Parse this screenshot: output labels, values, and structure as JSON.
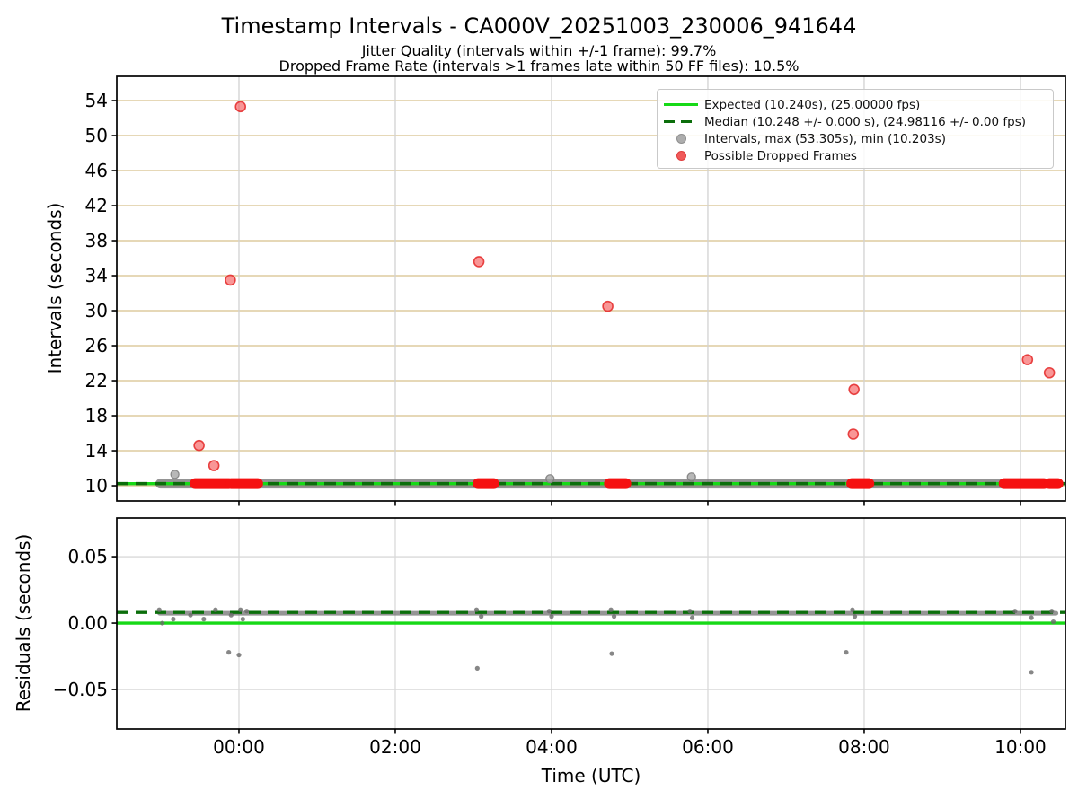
{
  "title": "Timestamp Intervals - CA000V_20251003_230006_941644",
  "subtitle1": "Jitter Quality (intervals within +/-1 frame): 99.7%",
  "subtitle2": "Dropped Frame Rate (intervals >1 frames late within 50 FF files): 10.5%",
  "xlabel": "Time (UTC)",
  "legend": {
    "items": [
      {
        "label": "Expected (10.240s), (25.00000 fps)",
        "marker": "solid-line",
        "color": "#16d916"
      },
      {
        "label": "Median (10.248 +/- 0.000 s), (24.98116 +/- 0.00 fps)",
        "marker": "dashed-line",
        "color": "#0b6e0b"
      },
      {
        "label": "Intervals, max (53.305s), min (10.203s)",
        "marker": "dot",
        "color": "#adadad",
        "edge": "#8f8f8f"
      },
      {
        "label": "Possible Dropped Frames",
        "marker": "dot",
        "color": "#f05a5a",
        "edge": "#df3c3c"
      }
    ]
  },
  "colors": {
    "expected_line": "#16d916",
    "median_line": "#0b6e0b",
    "grid_horizontal_top": "#d8c18c",
    "grid_vertical": "#d2d2d2",
    "grid_bottom": "#d9d9d9",
    "interval_dot_fill": "rgba(160,160,160,0.75)",
    "interval_dot_edge": "rgba(128,128,128,0.9)",
    "dropped_dot_fill": "rgba(245,85,85,0.62)",
    "dropped_dot_edge": "rgba(228,40,40,0.85)",
    "dropped_cluster": "#f51111",
    "baseline_band": "rgba(118,118,118,0.78)",
    "residual_dot": "rgba(105,105,105,0.8)",
    "spine": "#000000"
  },
  "chart_data": [
    {
      "type": "scatter",
      "panel": "intervals",
      "ylabel": "Intervals (seconds)",
      "yticks": [
        10,
        14,
        18,
        22,
        26,
        30,
        34,
        38,
        42,
        46,
        50,
        54
      ],
      "ylim": [
        8.26,
        56.77
      ],
      "xlim_hours": [
        -1.563,
        10.575
      ],
      "xticks": [
        {
          "hours": 0,
          "label": "00:00"
        },
        {
          "hours": 2,
          "label": "02:00"
        },
        {
          "hours": 4,
          "label": "04:00"
        },
        {
          "hours": 6,
          "label": "06:00"
        },
        {
          "hours": 8,
          "label": "08:00"
        },
        {
          "hours": 10,
          "label": "10:00"
        }
      ],
      "expected_interval_s": 10.24,
      "expected_fps": 25.0,
      "median_interval_s": 10.248,
      "median_fps": 24.98116,
      "max_interval_s": 53.305,
      "min_interval_s": 10.203,
      "baseline_band": {
        "value": 10.25,
        "start_h": -1.01,
        "end_h": 10.48
      },
      "interval_points": [
        [
          -0.82,
          11.3
        ],
        [
          3.98,
          10.8
        ],
        [
          5.79,
          11.0
        ]
      ],
      "dropped_points": [
        [
          -0.51,
          14.6
        ],
        [
          -0.32,
          12.3
        ],
        [
          -0.11,
          33.5
        ],
        [
          0.02,
          53.3
        ],
        [
          3.07,
          35.6
        ],
        [
          4.72,
          30.5
        ],
        [
          7.87,
          21.0
        ],
        [
          7.86,
          15.9
        ],
        [
          10.09,
          24.4
        ],
        [
          10.37,
          22.9
        ]
      ],
      "dropped_clusters": [
        [
          -0.56,
          -0.13
        ],
        [
          -0.1,
          0.24
        ],
        [
          3.06,
          3.26
        ],
        [
          4.74,
          4.95
        ],
        [
          7.84,
          8.06
        ],
        [
          9.79,
          10.3
        ],
        [
          10.37,
          10.48
        ]
      ]
    },
    {
      "type": "scatter",
      "panel": "residuals",
      "ylabel": "Residuals (seconds)",
      "yticks": [
        0.05,
        0.0,
        -0.05
      ],
      "ytick_labels": [
        "0.05",
        "0.00",
        "−0.05"
      ],
      "ylim": [
        -0.0797,
        0.0791
      ],
      "expected_residual_s": 0.0,
      "median_residual_s": 0.008,
      "baseline_band": {
        "value": 0.0074,
        "start_h": -1.01,
        "end_h": 10.45
      },
      "residual_points": [
        [
          -1.02,
          0.01
        ],
        [
          -0.98,
          0.0
        ],
        [
          -0.84,
          0.003
        ],
        [
          -0.62,
          0.006
        ],
        [
          -0.45,
          0.003
        ],
        [
          -0.3,
          0.01
        ],
        [
          -0.13,
          -0.022
        ],
        [
          -0.1,
          0.006
        ],
        [
          0.0,
          -0.024
        ],
        [
          0.02,
          0.01
        ],
        [
          0.05,
          0.003
        ],
        [
          0.1,
          0.009
        ],
        [
          3.04,
          0.01
        ],
        [
          3.05,
          -0.034
        ],
        [
          3.1,
          0.005
        ],
        [
          3.97,
          0.009
        ],
        [
          4.0,
          0.005
        ],
        [
          4.76,
          0.01
        ],
        [
          4.77,
          -0.023
        ],
        [
          4.8,
          0.005
        ],
        [
          5.77,
          0.009
        ],
        [
          5.8,
          0.004
        ],
        [
          7.77,
          -0.022
        ],
        [
          7.85,
          0.01
        ],
        [
          7.88,
          0.005
        ],
        [
          9.93,
          0.009
        ],
        [
          10.14,
          -0.037
        ],
        [
          10.14,
          0.004
        ],
        [
          10.4,
          0.009
        ],
        [
          10.42,
          0.001
        ]
      ]
    }
  ]
}
